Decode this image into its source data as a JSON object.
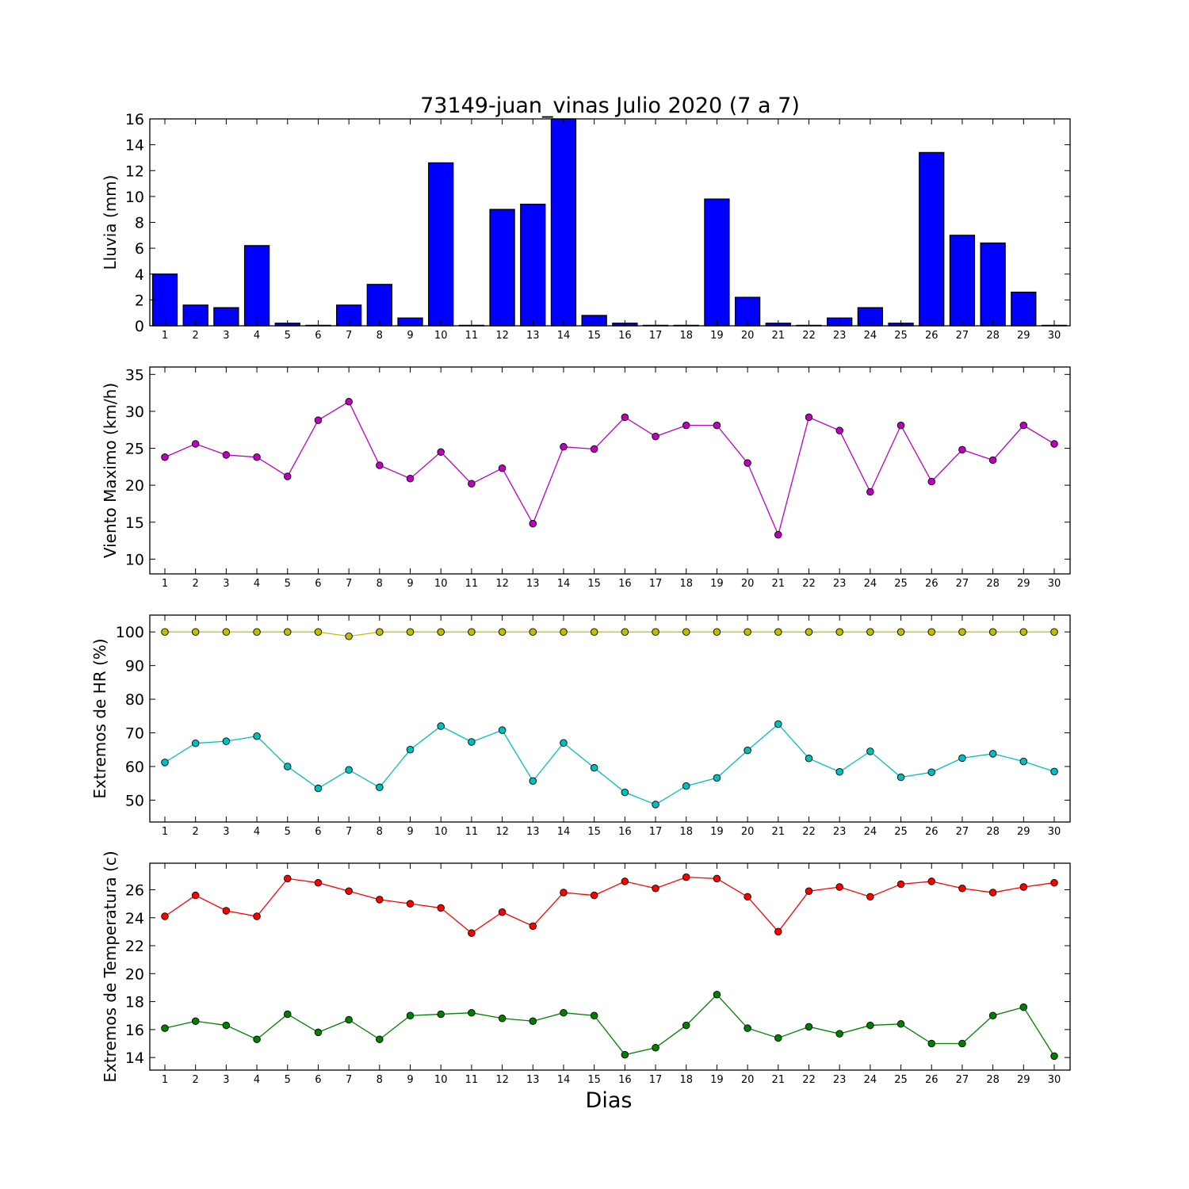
{
  "figure": {
    "title": "73149-juan_vinas Julio 2020  (7 a 7)",
    "xlabel": "Dias"
  },
  "chart_data": [
    {
      "type": "bar",
      "ylabel": "Lluvia (mm)",
      "ylim": [
        0,
        16
      ],
      "yticks": [
        0,
        2,
        4,
        6,
        8,
        10,
        12,
        14,
        16
      ],
      "x": [
        1,
        2,
        3,
        4,
        5,
        6,
        7,
        8,
        9,
        10,
        11,
        12,
        13,
        14,
        15,
        16,
        17,
        18,
        19,
        20,
        21,
        22,
        23,
        24,
        25,
        26,
        27,
        28,
        29,
        30
      ],
      "values": [
        4.0,
        1.6,
        1.4,
        6.2,
        0.2,
        0.0,
        1.6,
        3.2,
        0.6,
        12.6,
        0.0,
        9.0,
        9.4,
        16.0,
        0.8,
        0.2,
        0.0,
        0.0,
        9.8,
        2.2,
        0.2,
        0.0,
        0.6,
        1.4,
        0.2,
        13.4,
        7.0,
        6.4,
        2.6,
        0.0
      ],
      "color": "#0000ff",
      "grid": false
    },
    {
      "type": "line",
      "ylabel": "Viento Maximo (km/h)",
      "ylim": [
        8,
        36
      ],
      "yticks": [
        10,
        15,
        20,
        25,
        30,
        35
      ],
      "x": [
        1,
        2,
        3,
        4,
        5,
        6,
        7,
        8,
        9,
        10,
        11,
        12,
        13,
        14,
        15,
        16,
        17,
        18,
        19,
        20,
        21,
        22,
        23,
        24,
        25,
        26,
        27,
        28,
        29,
        30
      ],
      "series": [
        {
          "color": "#bf00bf",
          "values": [
            23.8,
            25.6,
            24.1,
            23.8,
            21.2,
            28.8,
            31.3,
            22.7,
            20.9,
            24.5,
            20.2,
            22.3,
            14.8,
            25.2,
            24.9,
            29.2,
            26.6,
            28.1,
            28.1,
            23.0,
            13.3,
            29.2,
            27.4,
            19.1,
            28.1,
            20.5,
            24.8,
            23.4,
            28.1,
            25.6
          ]
        }
      ],
      "grid": false
    },
    {
      "type": "line",
      "ylabel": "Extremos de HR (%)",
      "ylim": [
        43.5,
        105
      ],
      "yticks": [
        50,
        60,
        70,
        80,
        90,
        100
      ],
      "x": [
        1,
        2,
        3,
        4,
        5,
        6,
        7,
        8,
        9,
        10,
        11,
        12,
        13,
        14,
        15,
        16,
        17,
        18,
        19,
        20,
        21,
        22,
        23,
        24,
        25,
        26,
        27,
        28,
        29,
        30
      ],
      "series": [
        {
          "color": "#bfbf00",
          "values": [
            100,
            100,
            100,
            100,
            100,
            100,
            98.7,
            100,
            100,
            100,
            100,
            100,
            100,
            100,
            100,
            100,
            100,
            100,
            100,
            100,
            100,
            100,
            100,
            100,
            100,
            100,
            100,
            100,
            100,
            100
          ]
        },
        {
          "color": "#00bfbf",
          "values": [
            61.2,
            66.9,
            67.5,
            69.0,
            60.0,
            53.5,
            59.0,
            53.8,
            65.0,
            72.0,
            67.3,
            70.8,
            55.7,
            67.0,
            59.6,
            52.3,
            48.7,
            54.2,
            56.6,
            64.8,
            72.6,
            62.4,
            58.4,
            64.5,
            56.8,
            58.3,
            62.5,
            63.8,
            61.5,
            58.5
          ]
        }
      ],
      "grid": false
    },
    {
      "type": "line",
      "ylabel": "Extremos de Temperatura (c)",
      "ylim": [
        13.1,
        27.9
      ],
      "yticks": [
        14,
        16,
        18,
        20,
        22,
        24,
        26
      ],
      "x": [
        1,
        2,
        3,
        4,
        5,
        6,
        7,
        8,
        9,
        10,
        11,
        12,
        13,
        14,
        15,
        16,
        17,
        18,
        19,
        20,
        21,
        22,
        23,
        24,
        25,
        26,
        27,
        28,
        29,
        30
      ],
      "series": [
        {
          "color": "#ff0000",
          "values": [
            24.1,
            25.6,
            24.5,
            24.1,
            26.8,
            26.5,
            25.9,
            25.3,
            25.0,
            24.7,
            22.9,
            24.4,
            23.4,
            25.8,
            25.6,
            26.6,
            26.1,
            26.9,
            26.8,
            25.5,
            23.0,
            25.9,
            26.2,
            25.5,
            26.4,
            26.6,
            26.1,
            25.8,
            26.2,
            26.5
          ]
        },
        {
          "color": "#008000",
          "values": [
            16.1,
            16.6,
            16.3,
            15.3,
            17.1,
            15.8,
            16.7,
            15.3,
            17.0,
            17.1,
            17.2,
            16.8,
            16.6,
            17.2,
            17.0,
            14.2,
            14.7,
            16.3,
            18.5,
            16.1,
            15.4,
            16.2,
            15.7,
            16.3,
            16.4,
            15.0,
            15.0,
            17.0,
            17.6,
            14.1
          ]
        }
      ],
      "grid": false
    }
  ]
}
